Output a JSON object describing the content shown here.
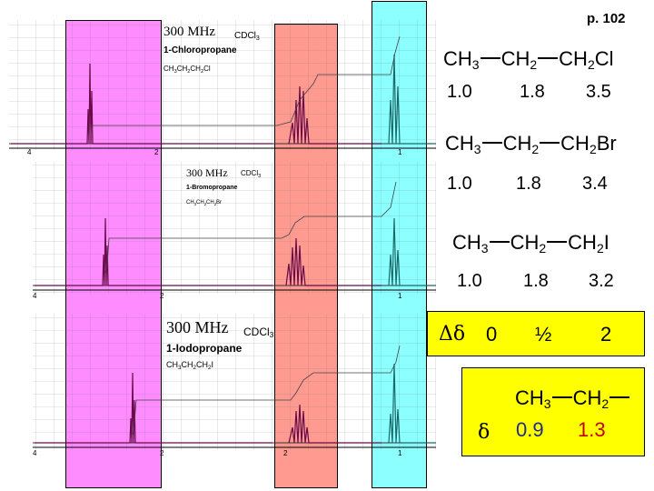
{
  "page_label": "p. 102",
  "spectra": [
    {
      "freq": "300 MHz",
      "solvent": "CDCl",
      "solvent_sub": "3",
      "name": "1-Chloropropane",
      "formula_parts": [
        "CH",
        "3",
        "CH",
        "2",
        "CH",
        "2",
        "Cl"
      ]
    },
    {
      "freq": "300 MHz",
      "solvent": "CDCl",
      "solvent_sub": "3",
      "name": "1-Bromopropane",
      "formula_parts": [
        "CH",
        "3",
        "CH",
        "2",
        "CH",
        "2",
        "Br"
      ]
    },
    {
      "freq": "300 MHz",
      "solvent": "CDCl",
      "solvent_sub": "3",
      "name": "1-Iodopropane",
      "formula_parts": [
        "CH",
        "3",
        "CH",
        "2",
        "CH",
        "2",
        "I"
      ]
    }
  ],
  "rows": [
    {
      "g1": "CH",
      "s1": "3",
      "g2": "CH",
      "s2": "2",
      "g3": "CH",
      "s3": "2",
      "x": "Cl",
      "v1": "1.0",
      "v2": "1.8",
      "v3": "3.5"
    },
    {
      "g1": "CH",
      "s1": "3",
      "g2": "CH",
      "s2": "2",
      "g3": "CH",
      "s3": "2",
      "x": "Br",
      "v1": "1.0",
      "v2": "1.8",
      "v3": "3.4"
    },
    {
      "g1": "CH",
      "s1": "3",
      "g2": "CH",
      "s2": "2",
      "g3": "CH",
      "s3": "2",
      "x": "I",
      "v1": "1.0",
      "v2": "1.8",
      "v3": "3.2"
    }
  ],
  "delta_delta": {
    "label": "Δδ",
    "zero": "0",
    "half": "½",
    "two": "2"
  },
  "reference": {
    "g1": "CH",
    "s1": "3",
    "g2": "CH",
    "s2": "2",
    "delta": "δ",
    "v1": "0.9",
    "v2": "1.3",
    "v1_color": "#1f2a8c",
    "v2_color": "#c00000"
  },
  "colors": {
    "magenta": "#ff8cff",
    "salmon": "#ff9a90",
    "cyan": "#8cffff",
    "spectrum": "#6a0a4a",
    "yellow": "#ffff00"
  }
}
